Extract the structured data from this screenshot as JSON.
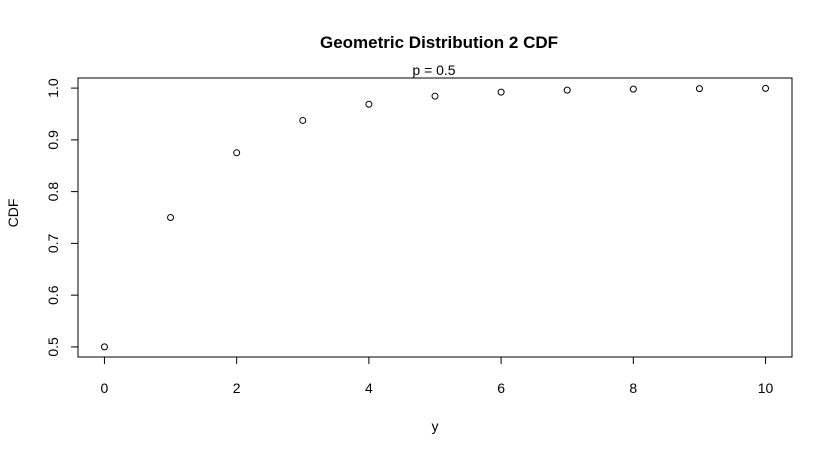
{
  "chart_data": {
    "type": "scatter",
    "title": "Geometric Distribution 2 CDF",
    "subtitle": "p = 0.5",
    "xlabel": "y",
    "ylabel": "CDF",
    "xlim": [
      -0.4,
      10.4
    ],
    "ylim": [
      0.4805,
      1.0195
    ],
    "x_ticks": [
      0,
      2,
      4,
      6,
      8,
      10
    ],
    "y_ticks": [
      0.5,
      0.6,
      0.7,
      0.8,
      0.9,
      1.0
    ],
    "x_tick_labels": [
      "0",
      "2",
      "4",
      "6",
      "8",
      "10"
    ],
    "y_tick_labels": [
      "0.5",
      "0.6",
      "0.7",
      "0.8",
      "0.9",
      "1.0"
    ],
    "grid": false,
    "marker": "open-circle",
    "series": [
      {
        "x": [
          0,
          1,
          2,
          3,
          4,
          5,
          6,
          7,
          8,
          9,
          10
        ],
        "y": [
          0.5,
          0.75,
          0.875,
          0.9375,
          0.96875,
          0.984375,
          0.9921875,
          0.99609375,
          0.998046875,
          0.9990234375,
          0.99951171875
        ]
      }
    ]
  }
}
